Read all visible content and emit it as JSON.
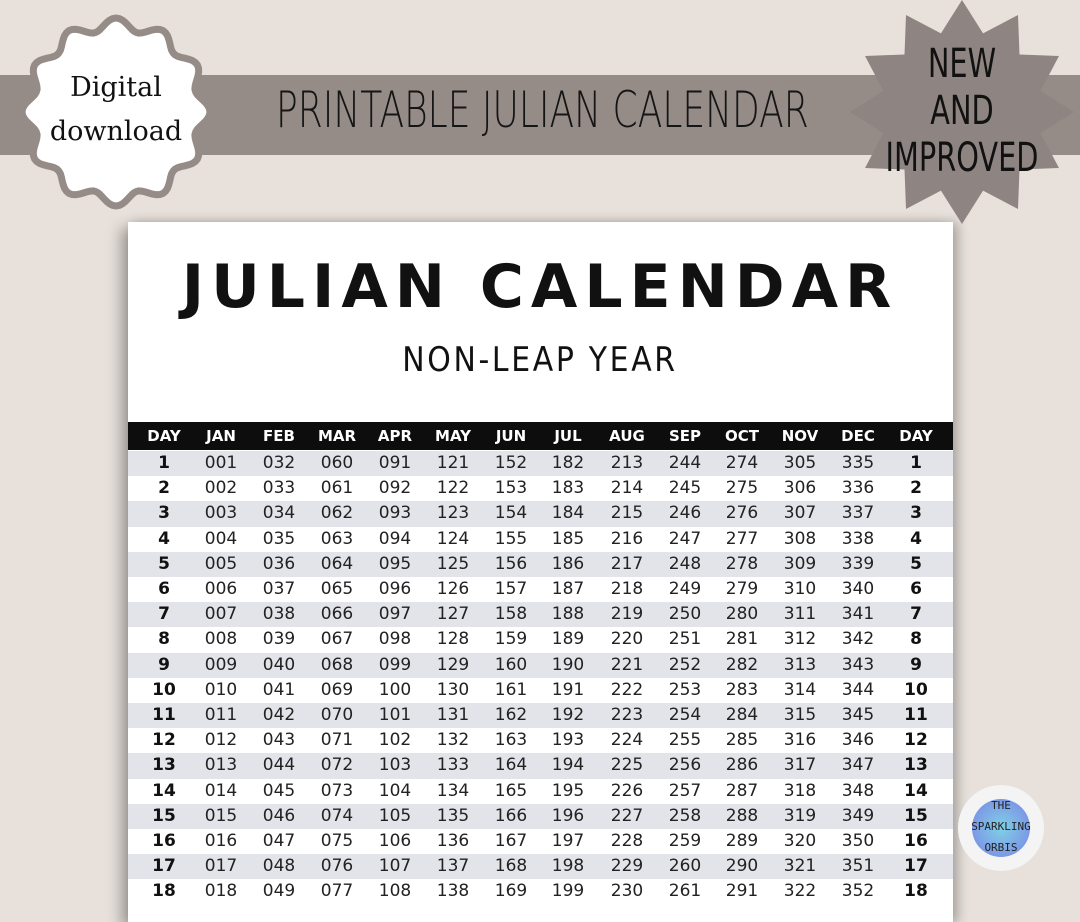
{
  "banner": {
    "title": "PRINTABLE JULIAN CALENDAR",
    "badge": "Digital download",
    "badge_line1": "Digital",
    "badge_line2": "download"
  },
  "calendar": {
    "title": "JULIAN CALENDAR",
    "subtitle": "NON-LEAP YEAR",
    "headers": [
      "DAY",
      "JAN",
      "FEB",
      "MAR",
      "APR",
      "MAY",
      "JUN",
      "JUL",
      "AUG",
      "SEP",
      "OCT",
      "NOV",
      "DEC",
      "DAY"
    ],
    "rows": [
      [
        "1",
        "001",
        "032",
        "060",
        "091",
        "121",
        "152",
        "182",
        "213",
        "244",
        "274",
        "305",
        "335",
        "1"
      ],
      [
        "2",
        "002",
        "033",
        "061",
        "092",
        "122",
        "153",
        "183",
        "214",
        "245",
        "275",
        "306",
        "336",
        "2"
      ],
      [
        "3",
        "003",
        "034",
        "062",
        "093",
        "123",
        "154",
        "184",
        "215",
        "246",
        "276",
        "307",
        "337",
        "3"
      ],
      [
        "4",
        "004",
        "035",
        "063",
        "094",
        "124",
        "155",
        "185",
        "216",
        "247",
        "277",
        "308",
        "338",
        "4"
      ],
      [
        "5",
        "005",
        "036",
        "064",
        "095",
        "125",
        "156",
        "186",
        "217",
        "248",
        "278",
        "309",
        "339",
        "5"
      ],
      [
        "6",
        "006",
        "037",
        "065",
        "096",
        "126",
        "157",
        "187",
        "218",
        "249",
        "279",
        "310",
        "340",
        "6"
      ],
      [
        "7",
        "007",
        "038",
        "066",
        "097",
        "127",
        "158",
        "188",
        "219",
        "250",
        "280",
        "311",
        "341",
        "7"
      ],
      [
        "8",
        "008",
        "039",
        "067",
        "098",
        "128",
        "159",
        "189",
        "220",
        "251",
        "281",
        "312",
        "342",
        "8"
      ],
      [
        "9",
        "009",
        "040",
        "068",
        "099",
        "129",
        "160",
        "190",
        "221",
        "252",
        "282",
        "313",
        "343",
        "9"
      ],
      [
        "10",
        "010",
        "041",
        "069",
        "100",
        "130",
        "161",
        "191",
        "222",
        "253",
        "283",
        "314",
        "344",
        "10"
      ],
      [
        "11",
        "011",
        "042",
        "070",
        "101",
        "131",
        "162",
        "192",
        "223",
        "254",
        "284",
        "315",
        "345",
        "11"
      ],
      [
        "12",
        "012",
        "043",
        "071",
        "102",
        "132",
        "163",
        "193",
        "224",
        "255",
        "285",
        "316",
        "346",
        "12"
      ],
      [
        "13",
        "013",
        "044",
        "072",
        "103",
        "133",
        "164",
        "194",
        "225",
        "256",
        "286",
        "317",
        "347",
        "13"
      ],
      [
        "14",
        "014",
        "045",
        "073",
        "104",
        "134",
        "165",
        "195",
        "226",
        "257",
        "287",
        "318",
        "348",
        "14"
      ],
      [
        "15",
        "015",
        "046",
        "074",
        "105",
        "135",
        "166",
        "196",
        "227",
        "258",
        "288",
        "319",
        "349",
        "15"
      ],
      [
        "16",
        "016",
        "047",
        "075",
        "106",
        "136",
        "167",
        "197",
        "228",
        "259",
        "289",
        "320",
        "350",
        "16"
      ],
      [
        "17",
        "017",
        "048",
        "076",
        "107",
        "137",
        "168",
        "198",
        "229",
        "260",
        "290",
        "321",
        "351",
        "17"
      ],
      [
        "18",
        "018",
        "049",
        "077",
        "108",
        "138",
        "169",
        "199",
        "230",
        "261",
        "291",
        "322",
        "352",
        "18"
      ]
    ]
  },
  "starburst": {
    "line1": "NEW",
    "line2": "AND",
    "line3": "IMPROVED"
  },
  "logo": {
    "line1": "THE",
    "line2": "SPARKLING",
    "line3": "ORBIS"
  },
  "colors": {
    "band": "#958b87",
    "background": "#e7e0db",
    "row_shade": "#e3e4ea",
    "star": "#8e8582"
  }
}
